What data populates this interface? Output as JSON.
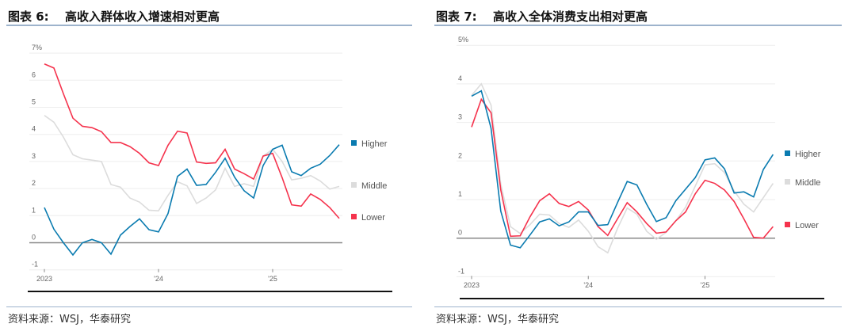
{
  "panels": [
    {
      "fig": "图表 6:",
      "title": "高收入群体收入增速相对更高",
      "source": "资料来源：WSJ，华泰研究"
    },
    {
      "fig": "图表 7:",
      "title": "高收入全体消费支出相对更高",
      "source": "资料来源：WSJ，华泰研究"
    }
  ],
  "colors": {
    "Higher": "#0a7bb0",
    "Middle": "#dcdcdc",
    "Lower": "#f5334d"
  },
  "chart_data": [
    {
      "type": "line",
      "title": "高收入群体收入增速相对更高",
      "ylim": [
        -1,
        7
      ],
      "yticks": [
        "-1",
        "0",
        "1",
        "2",
        "3",
        "4",
        "5",
        "6",
        "7%"
      ],
      "yvals": [
        -1,
        0,
        1,
        2,
        3,
        4,
        5,
        6,
        7
      ],
      "xticks": [
        {
          "label": "2023",
          "i": 0
        },
        {
          "label": "'24",
          "i": 12
        },
        {
          "label": "'25",
          "i": 24
        }
      ],
      "legend": [
        "Higher",
        "Middle",
        "Lower"
      ],
      "series": [
        {
          "name": "Higher",
          "values": [
            1.3,
            0.5,
            0.0,
            -0.45,
            0.0,
            0.12,
            0.0,
            -0.42,
            0.28,
            0.6,
            0.88,
            0.48,
            0.4,
            1.08,
            2.45,
            2.72,
            2.12,
            2.15,
            2.6,
            3.12,
            2.42,
            1.92,
            1.65,
            2.85,
            3.45,
            3.6,
            2.62,
            2.48,
            2.75,
            2.9,
            3.22,
            3.62
          ]
        },
        {
          "name": "Middle",
          "values": [
            4.7,
            4.45,
            3.9,
            3.25,
            3.1,
            3.05,
            3.0,
            2.15,
            2.05,
            1.65,
            1.5,
            1.2,
            1.18,
            1.75,
            2.25,
            2.1,
            1.45,
            1.65,
            1.95,
            2.75,
            2.08,
            2.18,
            2.08,
            3.2,
            3.45,
            3.0,
            2.32,
            2.38,
            2.48,
            2.28,
            1.98,
            2.08
          ]
        },
        {
          "name": "Lower",
          "values": [
            6.6,
            6.45,
            5.5,
            4.6,
            4.3,
            4.25,
            4.1,
            3.7,
            3.7,
            3.55,
            3.3,
            2.95,
            2.85,
            3.6,
            4.12,
            4.05,
            2.98,
            2.93,
            2.95,
            3.45,
            2.72,
            2.55,
            2.35,
            3.2,
            3.3,
            2.4,
            1.4,
            1.35,
            1.8,
            1.6,
            1.3,
            0.9
          ]
        }
      ]
    },
    {
      "type": "line",
      "title": "高收入全体消费支出相对更高",
      "ylim": [
        -1,
        5
      ],
      "yticks": [
        "-1",
        "0",
        "1",
        "2",
        "3",
        "4",
        "5%"
      ],
      "yvals": [
        -1,
        0,
        1,
        2,
        3,
        4,
        5
      ],
      "xticks": [
        {
          "label": "2023",
          "i": 0
        },
        {
          "label": "'24",
          "i": 12
        },
        {
          "label": "'25",
          "i": 24
        }
      ],
      "legend": [
        "Higher",
        "Middle",
        "Lower"
      ],
      "series": [
        {
          "name": "Higher",
          "values": [
            3.68,
            3.82,
            2.85,
            0.7,
            -0.18,
            -0.25,
            0.08,
            0.42,
            0.5,
            0.32,
            0.42,
            0.68,
            0.68,
            0.33,
            0.35,
            0.92,
            1.47,
            1.38,
            0.88,
            0.43,
            0.53,
            0.97,
            1.27,
            1.57,
            2.03,
            2.08,
            1.8,
            1.17,
            1.2,
            1.07,
            1.78,
            2.17
          ]
        },
        {
          "name": "Middle",
          "values": [
            3.7,
            4.0,
            3.45,
            1.4,
            0.3,
            0.12,
            0.35,
            0.62,
            0.6,
            0.38,
            0.28,
            0.47,
            0.18,
            -0.22,
            -0.38,
            0.25,
            0.78,
            0.62,
            0.18,
            -0.03,
            0.15,
            0.45,
            0.8,
            1.35,
            1.9,
            1.93,
            1.7,
            1.22,
            0.88,
            0.68,
            1.05,
            1.42
          ]
        },
        {
          "name": "Lower",
          "values": [
            2.88,
            3.6,
            3.25,
            1.25,
            0.05,
            0.06,
            0.55,
            0.97,
            1.15,
            0.9,
            0.82,
            0.95,
            0.73,
            0.3,
            0.07,
            0.5,
            0.92,
            0.68,
            0.38,
            0.13,
            0.16,
            0.45,
            0.68,
            1.15,
            1.5,
            1.42,
            1.25,
            0.95,
            0.5,
            0.02,
            0.0,
            0.3
          ]
        }
      ]
    }
  ]
}
